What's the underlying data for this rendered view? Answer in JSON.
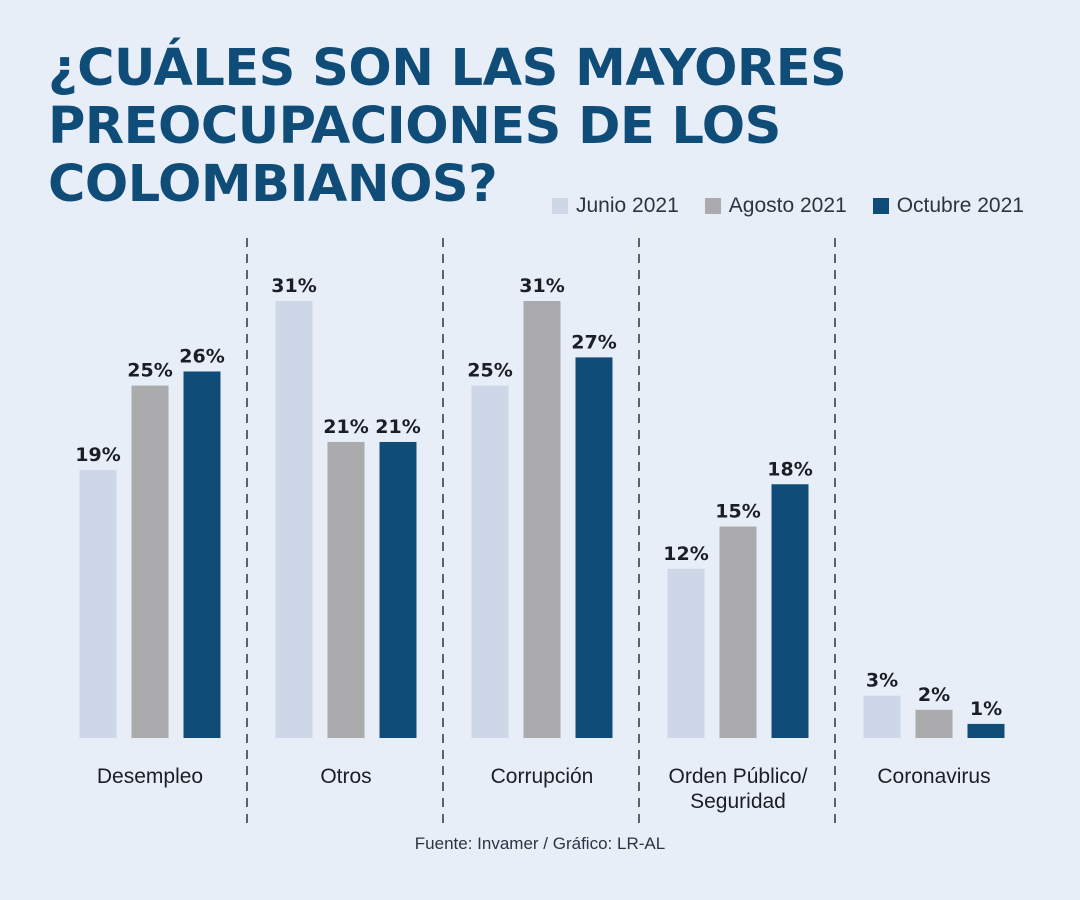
{
  "title": {
    "line1": "¿CUÁLES SON LAS MAYORES",
    "line2": "PREOCUPACIONES DE LOS",
    "line3": "COLOMBIANOS?"
  },
  "source": "Fuente: Invamer / Gráfico: LR-AL",
  "colors": {
    "title": "#0f4d78",
    "junio": "#cdd7e7",
    "agosto": "#abaaad",
    "octubre": "#0f4d78",
    "background": "#e8eef8"
  },
  "chart_data": {
    "type": "bar",
    "title": "¿CUÁLES SON LAS MAYORES PREOCUPACIONES DE LOS COLOMBIANOS?",
    "categories": [
      [
        "Desempleo"
      ],
      [
        "Otros"
      ],
      [
        "Corrupción"
      ],
      [
        "Orden Público/",
        "Seguridad"
      ],
      [
        "Coronavirus"
      ]
    ],
    "series": [
      {
        "name": "Junio 2021",
        "color": "#cdd7e7",
        "values": [
          19,
          31,
          25,
          12,
          3
        ],
        "labels": [
          "19%",
          "31%",
          "25%",
          "12%",
          "3%"
        ]
      },
      {
        "name": "Agosto 2021",
        "color": "#abaaad",
        "values": [
          25,
          21,
          31,
          15,
          2
        ],
        "labels": [
          "25%",
          "21%",
          "31%",
          "15%",
          "2%"
        ]
      },
      {
        "name": "Octubre 2021",
        "color": "#0f4d78",
        "values": [
          26,
          21,
          27,
          18,
          1
        ],
        "labels": [
          "26%",
          "21%",
          "27%",
          "18%",
          "1%"
        ]
      }
    ],
    "unit": "%",
    "ylim": [
      0,
      31
    ],
    "grid": false,
    "legend": "top-right",
    "xlabel": "",
    "ylabel": ""
  }
}
